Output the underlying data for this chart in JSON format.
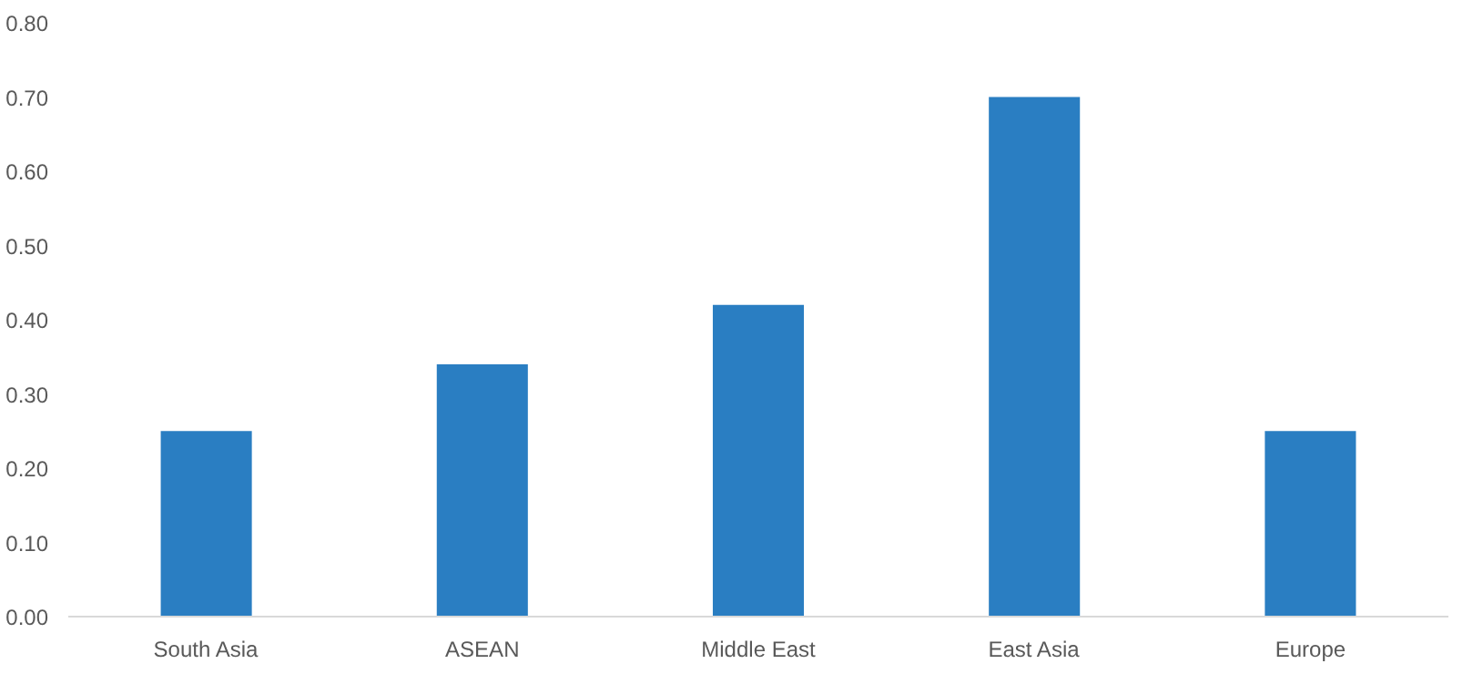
{
  "chart_data": {
    "type": "bar",
    "categories": [
      "South Asia",
      "ASEAN",
      "Middle East",
      "East Asia",
      "Europe"
    ],
    "values": [
      0.25,
      0.34,
      0.42,
      0.7,
      0.25
    ],
    "color": "#2a7ec2",
    "ylim": [
      0,
      0.8
    ],
    "yticks": [
      {
        "value": 0,
        "label": "0.00"
      },
      {
        "value": 0.1,
        "label": "0.10"
      },
      {
        "value": 0.2,
        "label": "0.20"
      },
      {
        "value": 0.3,
        "label": "0.30"
      },
      {
        "value": 0.4,
        "label": "0.40"
      },
      {
        "value": 0.5,
        "label": "0.50"
      },
      {
        "value": 0.6,
        "label": "0.60"
      },
      {
        "value": 0.7,
        "label": "0.70"
      },
      {
        "value": 0.8,
        "label": "0.80"
      }
    ],
    "grid": false
  }
}
